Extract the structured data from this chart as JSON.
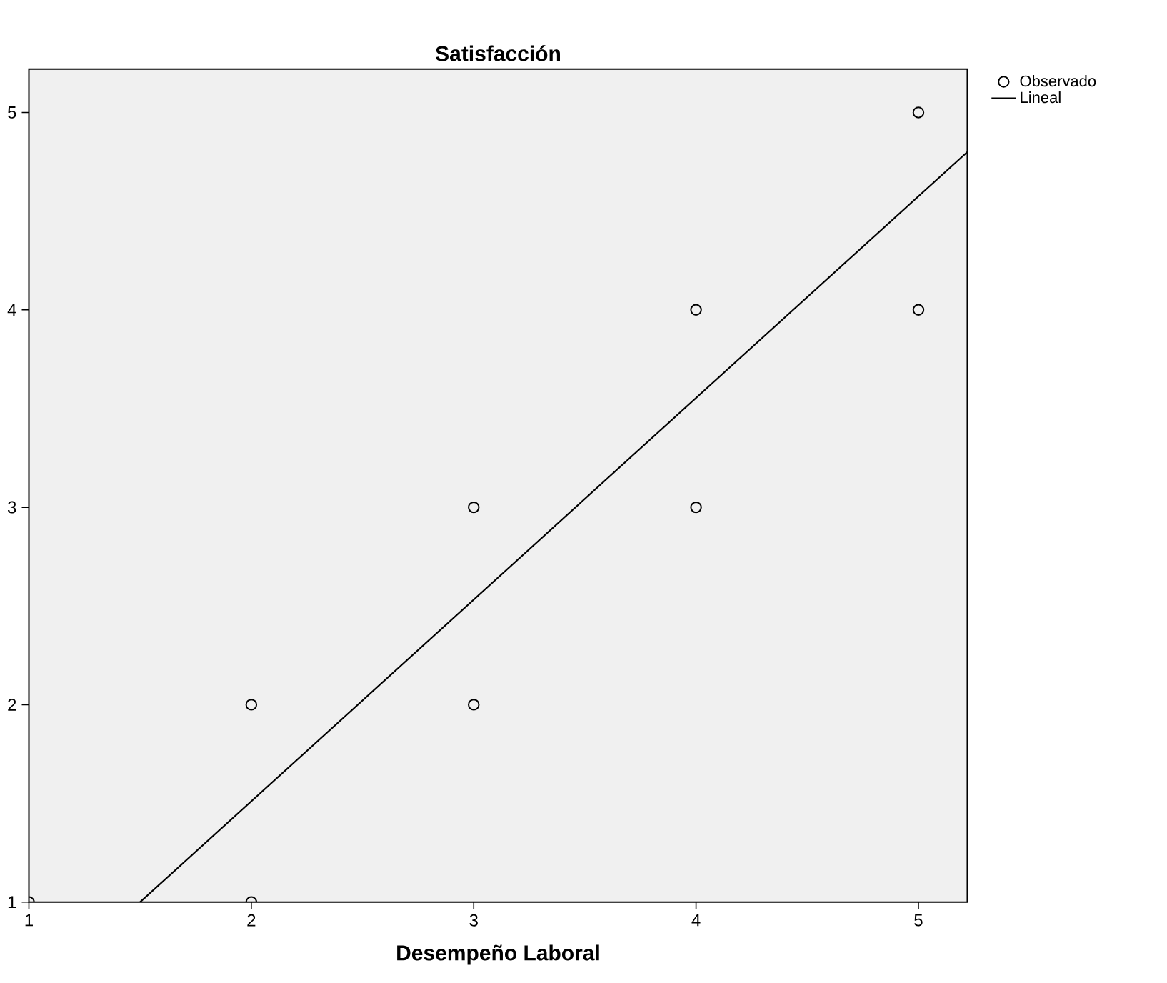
{
  "chart_data": {
    "type": "scatter",
    "title": "Satisfacción",
    "xlabel": "Desempeño Laboral",
    "xlim": [
      1,
      5.22
    ],
    "ylim": [
      1,
      5.22
    ],
    "xticks": [
      1,
      2,
      3,
      4,
      5
    ],
    "yticks": [
      1,
      2,
      3,
      4,
      5
    ],
    "grid": false,
    "legend": "top right",
    "marker": "circle",
    "series": [
      {
        "name": "Observado",
        "color": "#000000",
        "x": [
          1,
          2,
          2,
          3,
          3,
          4,
          4,
          5,
          5
        ],
        "values": [
          1,
          1,
          2,
          2,
          3,
          3,
          4,
          4,
          5
        ]
      },
      {
        "name": "Lineal",
        "type": "line",
        "marker": "none",
        "color": "#000000",
        "line_style": "solid",
        "x": [
          1.5,
          5.22
        ],
        "values": [
          1,
          4.8
        ]
      }
    ]
  }
}
